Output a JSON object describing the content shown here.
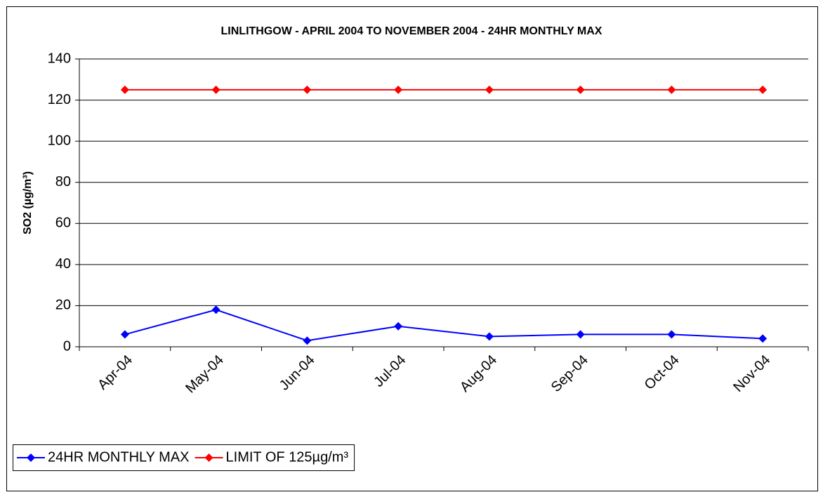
{
  "chart_data": {
    "type": "line",
    "title": "LINLITHGOW - APRIL 2004 TO NOVEMBER 2004 - 24HR MONTHLY MAX",
    "y_label": "SO2 (µg/m³)",
    "categories": [
      "Apr-04",
      "May-04",
      "Jun-04",
      "Jul-04",
      "Aug-04",
      "Sep-04",
      "Oct-04",
      "Nov-04"
    ],
    "series": [
      {
        "name": "24HR MONTHLY MAX",
        "color": "#0000ff",
        "values": [
          6,
          18,
          3,
          10,
          5,
          6,
          6,
          4
        ]
      },
      {
        "name": "LIMIT OF 125µg/m³",
        "color": "#ff0000",
        "values": [
          125,
          125,
          125,
          125,
          125,
          125,
          125,
          125
        ]
      }
    ],
    "ylim": [
      0,
      140
    ],
    "yticks": [
      0,
      20,
      40,
      60,
      80,
      100,
      120,
      140
    ],
    "grid": true,
    "legend": "bottom-left"
  }
}
